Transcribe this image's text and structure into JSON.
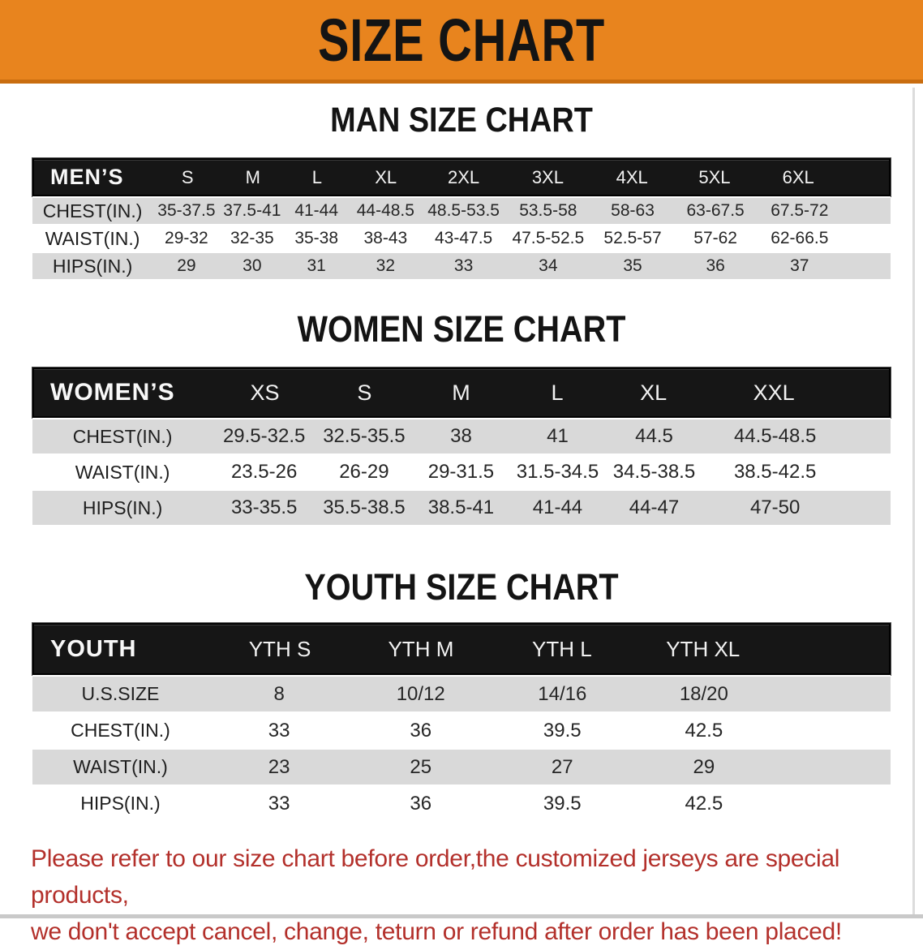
{
  "banner": {
    "title": "SIZE CHART"
  },
  "colors": {
    "banner_bg": "#e8841e",
    "banner_edge": "#c96d10",
    "table_header_bg": "#161616",
    "row_stripe_gray": "#d9d9d9",
    "note_red": "#b3302b"
  },
  "sections": [
    {
      "heading": "MAN SIZE CHART",
      "table": {
        "header_label": "MEN’S",
        "columns": [
          "S",
          "M",
          "L",
          "XL",
          "2XL",
          "3XL",
          "4XL",
          "5XL",
          "6XL"
        ],
        "rows": [
          {
            "label": "CHEST(IN.)",
            "values": [
              "35-37.5",
              "37.5-41",
              "41-44",
              "44-48.5",
              "48.5-53.5",
              "53.5-58",
              "58-63",
              "63-67.5",
              "67.5-72"
            ]
          },
          {
            "label": "WAIST(IN.)",
            "values": [
              "29-32",
              "32-35",
              "35-38",
              "38-43",
              "43-47.5",
              "47.5-52.5",
              "52.5-57",
              "57-62",
              "62-66.5"
            ]
          },
          {
            "label": "HIPS(IN.)",
            "values": [
              "29",
              "30",
              "31",
              "32",
              "33",
              "34",
              "35",
              "36",
              "37"
            ]
          }
        ]
      }
    },
    {
      "heading": "WOMEN SIZE CHART",
      "table": {
        "header_label": "WOMEN’S",
        "columns": [
          "XS",
          "S",
          "M",
          "L",
          "XL",
          "XXL"
        ],
        "rows": [
          {
            "label": "CHEST(IN.)",
            "values": [
              "29.5-32.5",
              "32.5-35.5",
              "38",
              "41",
              "44.5",
              "44.5-48.5"
            ]
          },
          {
            "label": "WAIST(IN.)",
            "values": [
              "23.5-26",
              "26-29",
              "29-31.5",
              "31.5-34.5",
              "34.5-38.5",
              "38.5-42.5"
            ]
          },
          {
            "label": "HIPS(IN.)",
            "values": [
              "33-35.5",
              "35.5-38.5",
              "38.5-41",
              "41-44",
              "44-47",
              "47-50"
            ]
          }
        ]
      }
    },
    {
      "heading": "YOUTH SIZE CHART",
      "table": {
        "header_label": "YOUTH",
        "columns": [
          "YTH S",
          "YTH M",
          "YTH L",
          "YTH XL"
        ],
        "rows": [
          {
            "label": "U.S.SIZE",
            "values": [
              "8",
              "10/12",
              "14/16",
              "18/20"
            ]
          },
          {
            "label": "CHEST(IN.)",
            "values": [
              "33",
              "36",
              "39.5",
              "42.5"
            ]
          },
          {
            "label": "WAIST(IN.)",
            "values": [
              "23",
              "25",
              "27",
              "29"
            ]
          },
          {
            "label": "HIPS(IN.)",
            "values": [
              "33",
              "36",
              "39.5",
              "42.5"
            ]
          }
        ]
      }
    }
  ],
  "footer": {
    "line1": "Please refer to our size chart before order,the customized jerseys are special products,",
    "line2": "we don't accept cancel, change, teturn or refund after order has been placed!"
  }
}
